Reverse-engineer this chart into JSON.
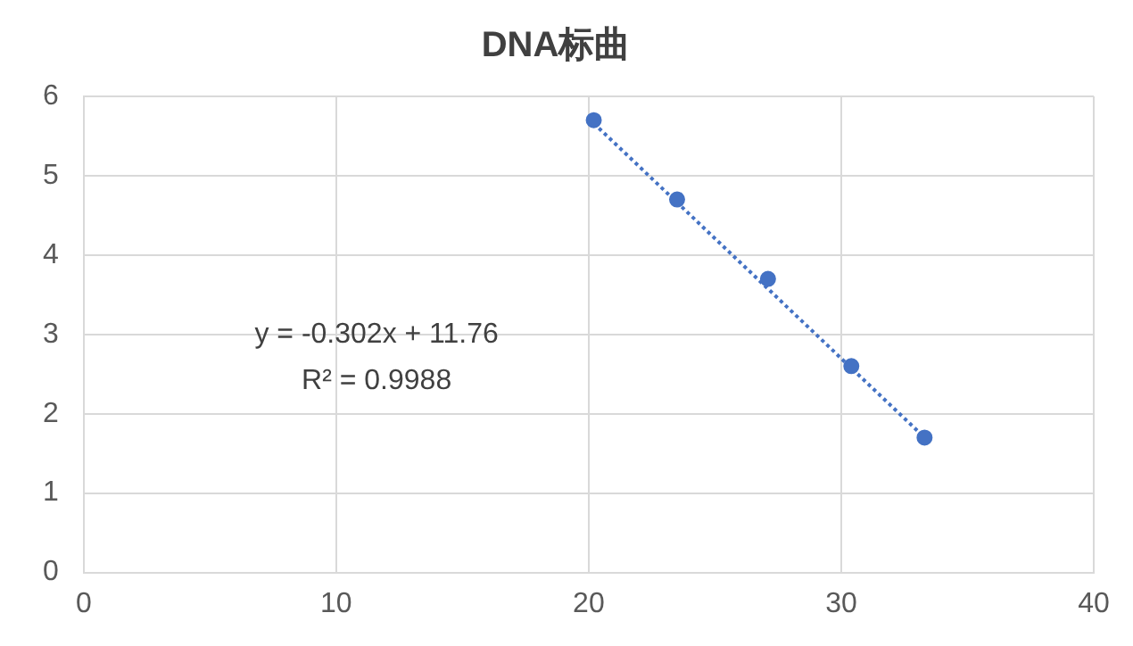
{
  "chart_data": {
    "type": "scatter",
    "title": "DNA标曲",
    "xlim": [
      0,
      40
    ],
    "xticks": [
      0,
      10,
      20,
      30,
      40
    ],
    "ylim": [
      0,
      6
    ],
    "yticks": [
      0,
      1,
      2,
      3,
      4,
      5,
      6
    ],
    "grid": true,
    "legend": false,
    "series": [
      {
        "color": "#4472c4",
        "marker": "circle",
        "x": [
          20.2,
          23.5,
          27.1,
          30.4,
          33.3
        ],
        "values": [
          5.7,
          4.7,
          3.7,
          2.6,
          1.7
        ]
      },
      {
        "type": "line",
        "color": "#4472c4",
        "marker": "none",
        "line_style": "dotted",
        "x": [
          20.2,
          33.3
        ],
        "values": [
          5.66,
          1.7
        ]
      }
    ],
    "annotations": [
      "y = -0.302x + 11.76",
      "R² = 0.9988"
    ]
  }
}
